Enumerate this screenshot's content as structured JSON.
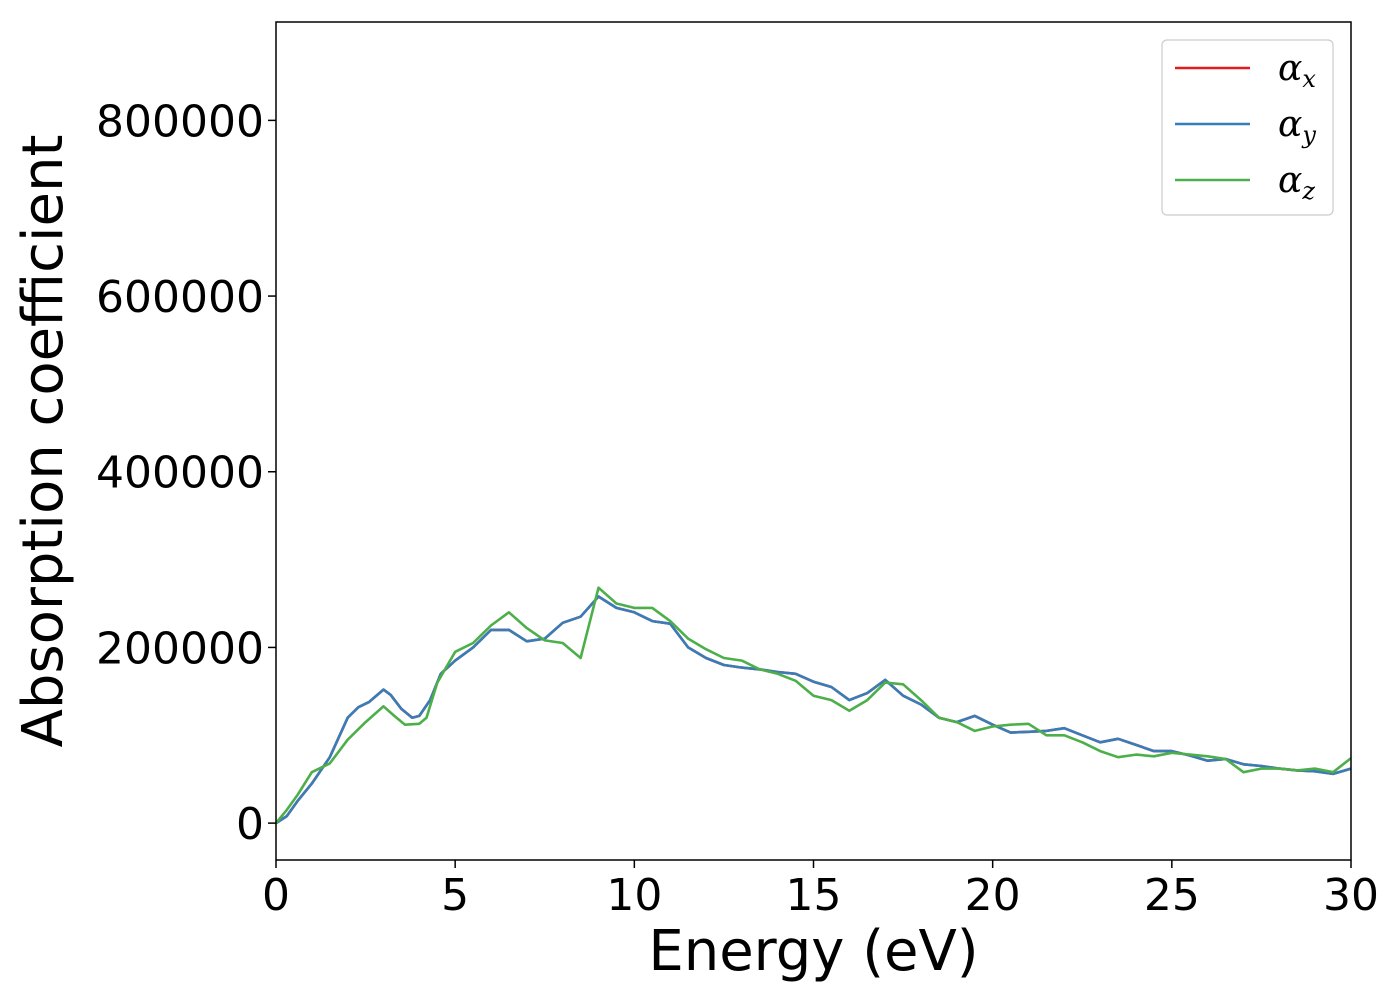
{
  "chart_data": {
    "type": "line",
    "title": "",
    "xlabel": "Energy (eV)",
    "ylabel": "Absorption coefficient",
    "xlim": [
      0,
      30
    ],
    "ylim": [
      -42000,
      912000
    ],
    "xticks": [
      0,
      5,
      10,
      15,
      20,
      25,
      30
    ],
    "yticks": [
      0,
      200000,
      400000,
      600000,
      800000
    ],
    "xtick_labels": [
      "0",
      "5",
      "10",
      "15",
      "20",
      "25",
      "30"
    ],
    "ytick_labels": [
      "0",
      "200000",
      "400000",
      "600000",
      "800000"
    ],
    "grid": false,
    "legend": {
      "position": "top-right"
    },
    "series": [
      {
        "name": "α_x",
        "symbol": "α",
        "subscript": "x",
        "color": "#e41a1c",
        "x": [
          0,
          0.3,
          0.6,
          1.0,
          1.5,
          2.0,
          2.3,
          2.6,
          3.0,
          3.2,
          3.5,
          3.8,
          4.0,
          4.3,
          4.6,
          5.0,
          5.5,
          6.0,
          6.5,
          7.0,
          7.5,
          8.0,
          8.5,
          9.0,
          9.5,
          10.0,
          10.5,
          11.0,
          11.5,
          12.0,
          12.5,
          13.0,
          13.5,
          14.0,
          14.5,
          15.0,
          15.5,
          16.0,
          16.5,
          17.0,
          17.5,
          18.0,
          18.5,
          19.0,
          19.5,
          20.0,
          20.5,
          21.0,
          21.5,
          22.0,
          22.5,
          23.0,
          23.5,
          24.0,
          24.5,
          25.0,
          25.5,
          26.0,
          26.5,
          27.0,
          27.5,
          28.0,
          28.5,
          29.0,
          29.5,
          30.0
        ],
        "y": [
          0,
          8000,
          25000,
          45000,
          75000,
          120000,
          132000,
          138000,
          152000,
          146000,
          130000,
          120000,
          122000,
          140000,
          170000,
          185000,
          200000,
          220000,
          220000,
          207000,
          210000,
          228000,
          235000,
          258000,
          245000,
          240000,
          230000,
          227000,
          200000,
          188000,
          180000,
          177000,
          175000,
          172000,
          170000,
          161000,
          155000,
          140000,
          148000,
          163000,
          145000,
          135000,
          120000,
          115000,
          122000,
          112000,
          103000,
          104000,
          105000,
          108000,
          100000,
          92000,
          96000,
          89000,
          82000,
          82000,
          77000,
          71000,
          73000,
          67000,
          65000,
          62000,
          60000,
          59000,
          56000,
          62000
        ]
      },
      {
        "name": "α_y",
        "symbol": "α",
        "subscript": "y",
        "color": "#377eb8",
        "x": [
          0,
          0.3,
          0.6,
          1.0,
          1.5,
          2.0,
          2.3,
          2.6,
          3.0,
          3.2,
          3.5,
          3.8,
          4.0,
          4.3,
          4.6,
          5.0,
          5.5,
          6.0,
          6.5,
          7.0,
          7.5,
          8.0,
          8.5,
          9.0,
          9.5,
          10.0,
          10.5,
          11.0,
          11.5,
          12.0,
          12.5,
          13.0,
          13.5,
          14.0,
          14.5,
          15.0,
          15.5,
          16.0,
          16.5,
          17.0,
          17.5,
          18.0,
          18.5,
          19.0,
          19.5,
          20.0,
          20.5,
          21.0,
          21.5,
          22.0,
          22.5,
          23.0,
          23.5,
          24.0,
          24.5,
          25.0,
          25.5,
          26.0,
          26.5,
          27.0,
          27.5,
          28.0,
          28.5,
          29.0,
          29.5,
          30.0
        ],
        "y": [
          0,
          8000,
          25000,
          45000,
          75000,
          120000,
          132000,
          138000,
          152000,
          146000,
          130000,
          120000,
          122000,
          140000,
          170000,
          185000,
          200000,
          220000,
          220000,
          207000,
          210000,
          228000,
          235000,
          258000,
          245000,
          240000,
          230000,
          227000,
          200000,
          188000,
          180000,
          177000,
          175000,
          172000,
          170000,
          161000,
          155000,
          140000,
          148000,
          163000,
          145000,
          135000,
          120000,
          115000,
          122000,
          112000,
          103000,
          104000,
          105000,
          108000,
          100000,
          92000,
          96000,
          89000,
          82000,
          82000,
          77000,
          71000,
          73000,
          67000,
          65000,
          62000,
          60000,
          59000,
          56000,
          62000
        ]
      },
      {
        "name": "α_z",
        "symbol": "α",
        "subscript": "z",
        "color": "#4daf4a",
        "x": [
          0,
          0.3,
          0.6,
          1.0,
          1.5,
          2.0,
          2.5,
          3.0,
          3.3,
          3.6,
          4.0,
          4.2,
          4.5,
          5.0,
          5.5,
          6.0,
          6.5,
          7.0,
          7.5,
          8.0,
          8.5,
          9.0,
          9.5,
          10.0,
          10.5,
          11.0,
          11.5,
          12.0,
          12.5,
          13.0,
          13.5,
          14.0,
          14.5,
          15.0,
          15.5,
          16.0,
          16.5,
          17.0,
          17.5,
          18.0,
          18.5,
          19.0,
          19.5,
          20.0,
          20.5,
          21.0,
          21.5,
          22.0,
          22.5,
          23.0,
          23.5,
          24.0,
          24.5,
          25.0,
          25.5,
          26.0,
          26.5,
          27.0,
          27.5,
          28.0,
          28.5,
          29.0,
          29.5,
          30.0
        ],
        "y": [
          0,
          15000,
          32000,
          58000,
          68000,
          95000,
          115000,
          133000,
          122000,
          112000,
          113000,
          120000,
          160000,
          195000,
          205000,
          225000,
          240000,
          222000,
          208000,
          205000,
          188000,
          268000,
          250000,
          245000,
          245000,
          230000,
          210000,
          198000,
          188000,
          185000,
          175000,
          170000,
          162000,
          145000,
          140000,
          128000,
          140000,
          160000,
          158000,
          140000,
          120000,
          115000,
          105000,
          110000,
          112000,
          113000,
          100000,
          100000,
          92000,
          82000,
          75000,
          78000,
          76000,
          80000,
          78000,
          76000,
          73000,
          58000,
          62000,
          62000,
          60000,
          62000,
          58000,
          74000
        ]
      }
    ]
  }
}
